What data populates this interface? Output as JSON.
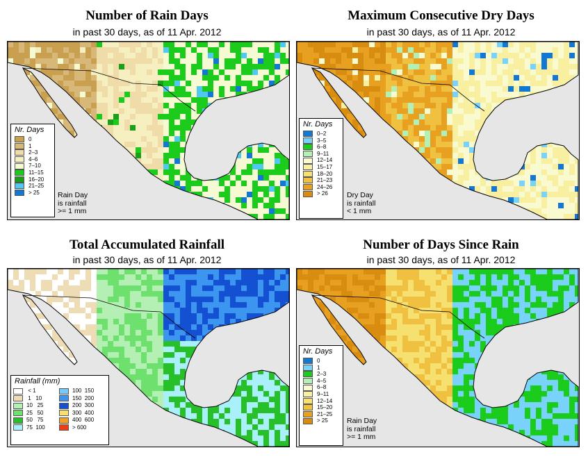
{
  "panels": [
    {
      "title": "Number of Rain Days",
      "subtitle": "in past 30 days, as of  11 Apr. 2012",
      "legend_title": "Nr. Days",
      "legend": [
        {
          "label": "0",
          "color": "#c8a050"
        },
        {
          "label": "1",
          "color": "#d8b878"
        },
        {
          "label": "2–3",
          "color": "#f0dca8"
        },
        {
          "label": "4–6",
          "color": "#f6f0c0"
        },
        {
          "label": "7–10",
          "color": "#f6fad2"
        },
        {
          "label": "11–15",
          "color": "#1ccc1c"
        },
        {
          "label": "16–20",
          "color": "#18a018"
        },
        {
          "label": "21–25",
          "color": "#50c8f0"
        },
        {
          "label": "> 25",
          "color": "#1478d2"
        }
      ],
      "note": [
        "Rain Day",
        "is rainfall",
        ">= 1 mm"
      ]
    },
    {
      "title": "Maximum Consecutive Dry Days",
      "subtitle": "in past 30 days, as of  11 Apr. 2012",
      "legend_title": "Nr. Days",
      "legend": [
        {
          "label": "0–2",
          "color": "#1478d2"
        },
        {
          "label": "3–5",
          "color": "#78d2fa"
        },
        {
          "label": "6–8",
          "color": "#1ccc1c"
        },
        {
          "label": "9–11",
          "color": "#b4f0b4"
        },
        {
          "label": "12–14",
          "color": "#fafad0"
        },
        {
          "label": "15–17",
          "color": "#f8f0a0"
        },
        {
          "label": "18–20",
          "color": "#f6e070"
        },
        {
          "label": "21–23",
          "color": "#f0c040"
        },
        {
          "label": "24–26",
          "color": "#e8a020"
        },
        {
          "label": "> 26",
          "color": "#d88c10"
        }
      ],
      "note": [
        "Dry Day",
        "is rainfall",
        "< 1 mm"
      ]
    },
    {
      "title": "Total Accumulated Rainfall",
      "subtitle": "in past 30 days, as of  11 Apr. 2012",
      "legend_title": "Rainfall (mm)",
      "legend": [
        {
          "label": " < 1",
          "color": "#ffffff"
        },
        {
          "label": " 1   10",
          "color": "#eedcb4"
        },
        {
          "label": "10   25",
          "color": "#b4f0b4"
        },
        {
          "label": "25   50",
          "color": "#6ee06e"
        },
        {
          "label": "50   75",
          "color": "#28c028"
        },
        {
          "label": "75  100",
          "color": "#aaf0fa"
        },
        {
          "label": "100  150",
          "color": "#78c8fa"
        },
        {
          "label": "150  200",
          "color": "#3c96f0"
        },
        {
          "label": "200  300",
          "color": "#1450d2"
        },
        {
          "label": "300  400",
          "color": "#f6e070"
        },
        {
          "label": "400  600",
          "color": "#f0a028"
        },
        {
          "label": "> 600",
          "color": "#f03c14"
        }
      ]
    },
    {
      "title": "Number of Days Since Rain",
      "subtitle": "in past 30 days, as of  11 Apr. 2012",
      "legend_title": "Nr. Days",
      "legend": [
        {
          "label": "0",
          "color": "#1478d2"
        },
        {
          "label": "1",
          "color": "#78d2fa"
        },
        {
          "label": "2–3",
          "color": "#1ccc1c"
        },
        {
          "label": "4–5",
          "color": "#b4f0b4"
        },
        {
          "label": "6–8",
          "color": "#fafad0"
        },
        {
          "label": "9–11",
          "color": "#f8f0a0"
        },
        {
          "label": "12–14",
          "color": "#f6e070"
        },
        {
          "label": "15–20",
          "color": "#f0c040"
        },
        {
          "label": "21–25",
          "color": "#e8a020"
        },
        {
          "label": "> 25",
          "color": "#d88c10"
        }
      ],
      "note": [
        "Rain Day",
        "is rainfall",
        ">= 1 mm"
      ]
    }
  ]
}
